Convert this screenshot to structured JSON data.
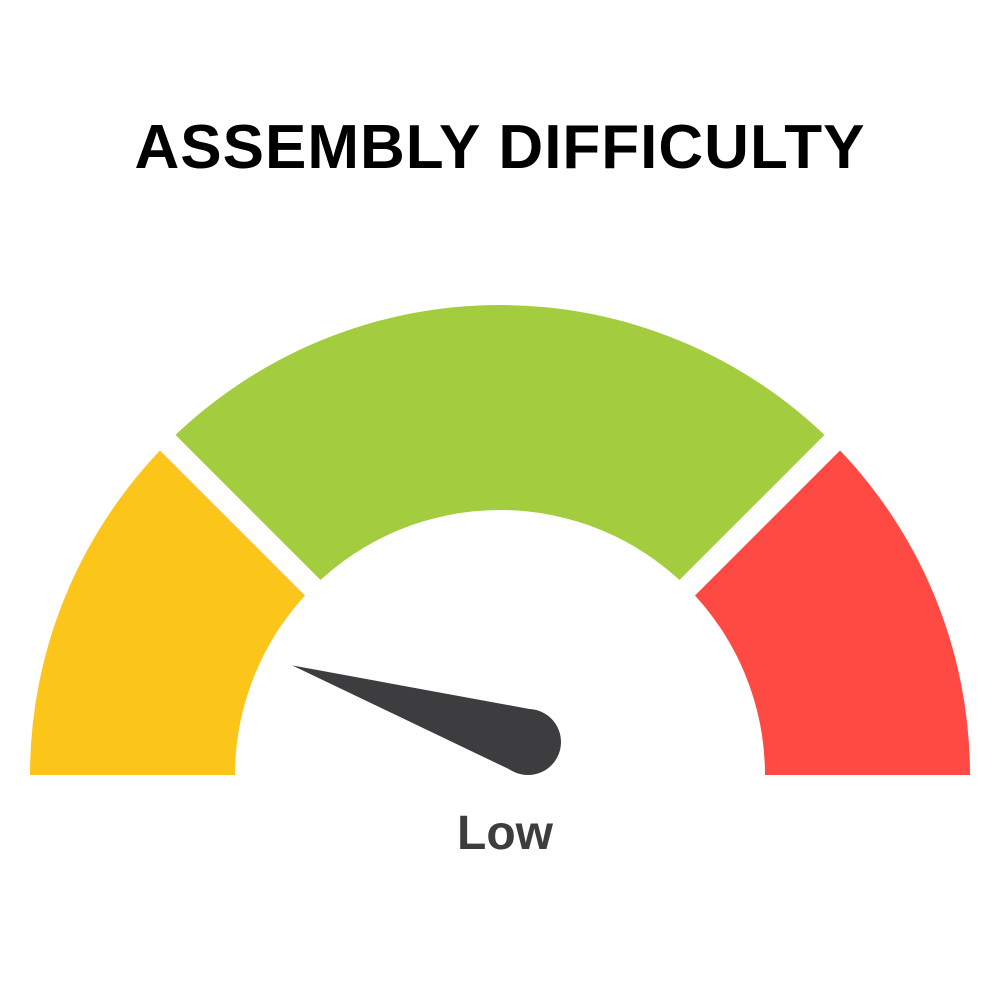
{
  "title": "ASSEMBLY DIFFICULTY",
  "gauge": {
    "label": "Low",
    "needle_value": 0.1,
    "segments": [
      {
        "name": "yellow",
        "color": "#FCC51A"
      },
      {
        "name": "green",
        "color": "#A3CC3E"
      },
      {
        "name": "red",
        "color": "#FF4A43"
      }
    ],
    "needle_color": "#3D3D3F"
  }
}
